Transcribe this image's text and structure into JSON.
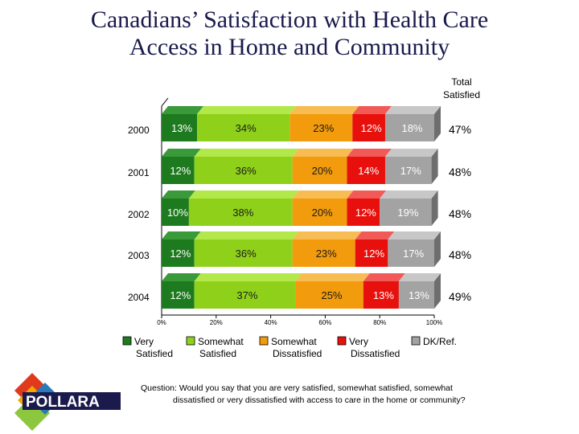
{
  "title_line1": "Canadians’ Satisfaction with Health Care",
  "title_line2": "Access in Home and Community",
  "total_header": [
    "Total",
    "Satisfied"
  ],
  "question_line1": "Question: Would you say that you are very satisfied, somewhat satisfied, somewhat",
  "question_line2": "dissatisfied or very dissatisfied with access to care in the home or community?",
  "logo_text": "POLLARA",
  "chart_data": {
    "type": "bar",
    "orientation": "horizontal",
    "stacked": true,
    "categories": [
      "2000",
      "2001",
      "2002",
      "2003",
      "2004"
    ],
    "series": [
      {
        "name": "Very Satisfied",
        "values": [
          13,
          12,
          10,
          12,
          12
        ],
        "labels": [
          "13%",
          "12%",
          "10%",
          "12%",
          "12%"
        ],
        "color": "#1e7a1e",
        "top": "#3a9a3a",
        "side": "#0f4d0f"
      },
      {
        "name": "Somewhat Satisfied",
        "values": [
          34,
          36,
          38,
          36,
          37
        ],
        "labels": [
          "34%",
          "36%",
          "38%",
          "36%",
          "37%"
        ],
        "color": "#8fd11a",
        "top": "#b2e84a",
        "side": "#5f9010"
      },
      {
        "name": "Somewhat Dissatisfied",
        "values": [
          23,
          20,
          20,
          23,
          25
        ],
        "labels": [
          "23%",
          "20%",
          "20%",
          "23%",
          "25%"
        ],
        "color": "#f29b0c",
        "top": "#f7bd52",
        "side": "#b06e05"
      },
      {
        "name": "Very Dissatisfied",
        "values": [
          12,
          14,
          12,
          12,
          13
        ],
        "labels": [
          "12%",
          "14%",
          "12%",
          "12%",
          "13%"
        ],
        "color": "#e8100c",
        "top": "#f25a57",
        "side": "#a00806"
      },
      {
        "name": "DK/Ref.",
        "values": [
          18,
          17,
          19,
          17,
          13
        ],
        "labels": [
          "18%",
          "17%",
          "19%",
          "17%",
          "13%"
        ],
        "color": "#a3a3a3",
        "top": "#c7c7c7",
        "side": "#6e6e6e"
      }
    ],
    "legend_labels": [
      [
        "Very",
        "Satisfied"
      ],
      [
        "Somewhat",
        "Satisfied"
      ],
      [
        "Somewhat",
        "Dissatisfied"
      ],
      [
        "Very",
        "Dissatisfied"
      ],
      [
        "DK/Ref."
      ]
    ],
    "total_satisfied": [
      "47%",
      "48%",
      "48%",
      "48%",
      "49%"
    ],
    "xlim": [
      0,
      100
    ],
    "xticks": [
      0,
      20,
      40,
      60,
      80,
      100
    ],
    "xtick_labels": [
      "0%",
      "20%",
      "40%",
      "60%",
      "80%",
      "100%"
    ],
    "legend_position": "bottom"
  }
}
